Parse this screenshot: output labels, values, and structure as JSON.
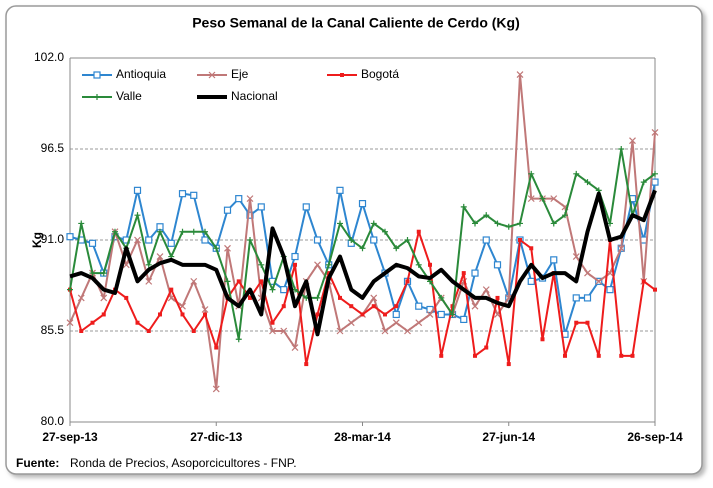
{
  "chart_data": {
    "type": "line",
    "title": "Peso Semanal de la Canal Caliente de Cerdo (Kg)",
    "y_label": "Kg",
    "source_label": "Fuente:",
    "source": "Ronda de Precios, Asoporcicultores - FNP.",
    "categories": [
      "27-sep-13",
      null,
      null,
      null,
      null,
      null,
      null,
      null,
      null,
      null,
      null,
      null,
      null,
      "27-dic-13",
      null,
      null,
      null,
      null,
      null,
      null,
      null,
      null,
      null,
      null,
      null,
      null,
      "28-mar-14",
      null,
      null,
      null,
      null,
      null,
      null,
      null,
      null,
      null,
      null,
      null,
      null,
      "27-jun-14",
      null,
      null,
      null,
      null,
      null,
      null,
      null,
      null,
      null,
      null,
      null,
      null,
      "26-sep-14"
    ],
    "ylim": [
      80,
      102
    ],
    "yticks": [
      {
        "value": 80,
        "label": "80.0"
      },
      85.5,
      {
        "value": 91,
        "label": "91.0"
      },
      96.5,
      {
        "value": 102,
        "label": "102.0"
      }
    ],
    "grid": true,
    "legend": "upper left",
    "series": [
      {
        "name": "Antioquia",
        "color": "#2e86d0",
        "marker": "square-open",
        "line_width": 2,
        "values": [
          91.2,
          91,
          90.8,
          89,
          91.2,
          91,
          94,
          91,
          91.8,
          90.8,
          93.8,
          93.7,
          91,
          90.5,
          92.8,
          93.5,
          92.5,
          93,
          88.5,
          88,
          90,
          93,
          91,
          89.5,
          94,
          90.8,
          93.2,
          91,
          89,
          86.5,
          88.5,
          87,
          86.8,
          86.5,
          86.5,
          86.2,
          89,
          91,
          89.5,
          87.5,
          91,
          88.5,
          88.7,
          89.8,
          85.3,
          87.5,
          87.5,
          88.5,
          88,
          90.5,
          93.5,
          91,
          94.5
        ]
      },
      {
        "name": "Eje",
        "color": "#c07878",
        "marker": "x",
        "line_width": 2,
        "values": [
          86,
          87.5,
          89,
          87.5,
          91.5,
          89.5,
          91,
          88.5,
          90,
          87.5,
          87,
          88.5,
          86.8,
          82,
          90.5,
          87,
          93.5,
          87.5,
          85.5,
          85.5,
          84.5,
          88.5,
          89.5,
          88.5,
          85.5,
          86,
          86.5,
          87.5,
          85.5,
          86,
          85.5,
          86,
          86.5,
          87.5,
          86.5,
          88.5,
          87,
          88,
          86.5,
          87.5,
          101,
          93.5,
          93.5,
          93.5,
          93,
          90,
          89,
          88.5,
          89,
          90.5,
          97,
          88.5,
          97.5
        ]
      },
      {
        "name": "Bogotá",
        "color": "#ee1c1c",
        "marker": "square",
        "line_width": 2,
        "values": [
          88,
          85.5,
          86,
          86.5,
          88,
          87.5,
          86,
          85.5,
          86.5,
          88,
          86.5,
          85.5,
          86.5,
          84.5,
          87.5,
          88.5,
          87.5,
          88.5,
          86,
          87,
          89.5,
          83.5,
          86.5,
          89,
          87.5,
          87,
          86.5,
          87,
          86.5,
          87,
          88.5,
          91.5,
          89.5,
          84,
          87,
          89,
          84,
          84.5,
          87.5,
          83.5,
          91,
          90.5,
          85,
          89,
          84,
          86,
          86,
          84,
          91,
          84,
          84,
          88.5,
          88
        ]
      },
      {
        "name": "Valle",
        "color": "#2a8a3a",
        "marker": "plus",
        "line_width": 2,
        "values": [
          88,
          92,
          89,
          89,
          91.5,
          90.5,
          92.5,
          89.5,
          91.5,
          90,
          91.5,
          91.5,
          91.5,
          90.5,
          88.5,
          85,
          91,
          89.5,
          88,
          90,
          88,
          87.5,
          87.5,
          89.5,
          92,
          91,
          90.5,
          92,
          91.5,
          90.5,
          91,
          89.5,
          88.5,
          87.5,
          86.5,
          93,
          92,
          92.5,
          92,
          91.8,
          92,
          95,
          93.5,
          92,
          92.5,
          95,
          94.5,
          94,
          92,
          96.5,
          92.5,
          94.5,
          95
        ]
      },
      {
        "name": "Nacional",
        "color": "#000000",
        "marker": "none",
        "line_width": 4,
        "values": [
          88.8,
          89,
          88.7,
          88,
          87.8,
          90.5,
          88.5,
          89.2,
          89.6,
          89.8,
          89.5,
          89.5,
          89.5,
          89.2,
          87.5,
          87,
          88,
          86.5,
          91.7,
          90,
          87,
          88.5,
          85.3,
          88.7,
          90,
          88,
          87.5,
          88.5,
          89,
          89.5,
          89.3,
          88.8,
          88.7,
          89.2,
          88.5,
          88,
          87.5,
          87.5,
          87.2,
          87,
          88.5,
          89.5,
          88.7,
          89,
          89,
          88.5,
          91.5,
          93.8,
          91,
          91.2,
          92.5,
          92.2,
          94
        ]
      }
    ]
  }
}
